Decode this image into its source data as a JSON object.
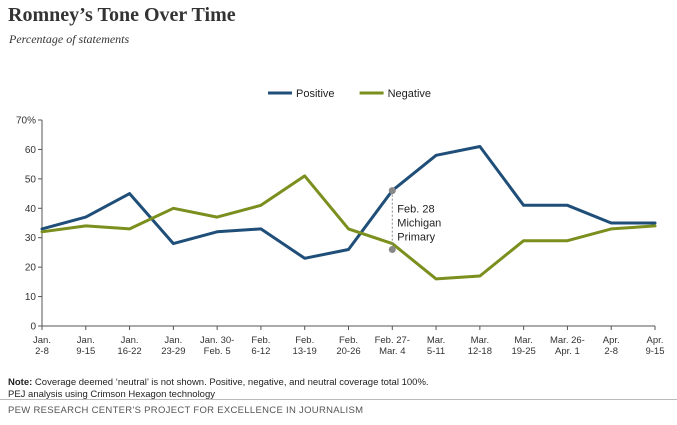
{
  "header": {
    "title": "Romney’s Tone Over Time",
    "subtitle": "Percentage of statements"
  },
  "footnote": {
    "note_label": "Note:",
    "note_text": " Coverage deemed ‘neutral’ is not shown. Positive, negative, and neutral coverage total 100%.",
    "source": "PEJ analysis using Crimson Hexagon technology",
    "credit": "PEW RESEARCH CENTER'S PROJECT FOR EXCELLENCE IN JOURNALISM"
  },
  "chart_data": {
    "type": "line",
    "title": "Romney’s Tone Over Time",
    "subtitle": "Percentage of statements",
    "xlabel": "",
    "ylabel": "",
    "ylim": [
      0,
      70
    ],
    "yticks": [
      "0",
      "10",
      "20",
      "30",
      "40",
      "50",
      "60",
      "70%"
    ],
    "ytick_values": [
      0,
      10,
      20,
      30,
      40,
      50,
      60,
      70
    ],
    "grid": false,
    "legend_position": "top-center",
    "categories": [
      [
        "Jan.",
        "2-8"
      ],
      [
        "Jan.",
        "9-15"
      ],
      [
        "Jan.",
        "16-22"
      ],
      [
        "Jan.",
        "23-29"
      ],
      [
        "Jan. 30-",
        "Feb. 5"
      ],
      [
        "Feb.",
        "6-12"
      ],
      [
        "Feb.",
        "13-19"
      ],
      [
        "Feb.",
        "20-26"
      ],
      [
        "Feb. 27-",
        "Mar. 4"
      ],
      [
        "Mar.",
        "5-11"
      ],
      [
        "Mar.",
        "12-18"
      ],
      [
        "Mar.",
        "19-25"
      ],
      [
        "Mar. 26-",
        "Apr. 1"
      ],
      [
        "Apr.",
        "2-8"
      ],
      [
        "Apr.",
        "9-15"
      ]
    ],
    "series": [
      {
        "name": "Positive",
        "color": "#1f4e79",
        "values": [
          33,
          37,
          45,
          28,
          32,
          33,
          23,
          26,
          46,
          58,
          61,
          41,
          41,
          35,
          35
        ]
      },
      {
        "name": "Negative",
        "color": "#7a8f1e",
        "values": [
          32,
          34,
          33,
          40,
          37,
          41,
          51,
          33,
          28,
          16,
          17,
          29,
          29,
          33,
          34
        ]
      }
    ],
    "annotation": {
      "lines": [
        "Feb. 28",
        "Michigan",
        "Primary"
      ],
      "category_index": 8,
      "from_value": 46,
      "to_value": 26
    }
  }
}
